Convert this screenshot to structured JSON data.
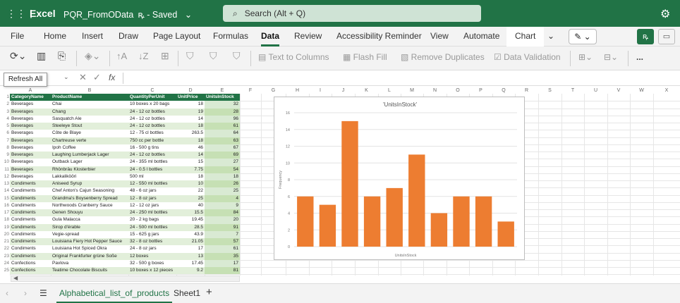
{
  "titlebar": {
    "app_name": "Excel",
    "doc_name": "PQR_FromOData",
    "save_status": "Saved",
    "search_placeholder": "Search (Alt + Q)"
  },
  "menu": {
    "tabs": [
      "File",
      "Home",
      "Insert",
      "Draw",
      "Page Layout",
      "Formulas",
      "Data",
      "Review",
      "Accessibility Reminder",
      "View",
      "Automate",
      "Chart"
    ],
    "active_tab": "Data"
  },
  "ribbon": {
    "text_to_columns": "Text to Columns",
    "flash_fill": "Flash Fill",
    "remove_duplicates": "Remove Duplicates",
    "data_validation": "Data Validation",
    "more": "..."
  },
  "tooltip": "Refresh All",
  "formula_bar": {
    "fx": "fx",
    "value": ""
  },
  "columns": [
    "A",
    "B",
    "C",
    "D",
    "E",
    "F",
    "G",
    "H",
    "I",
    "J",
    "K",
    "L",
    "M",
    "N",
    "O",
    "P",
    "Q",
    "R",
    "S",
    "T",
    "U",
    "V",
    "W",
    "X"
  ],
  "table": {
    "headers": [
      "CategoryName",
      "ProductName",
      "QuantityPerUnit",
      "UnitPrice",
      "UnitsInStock"
    ],
    "rows": [
      [
        "Beverages",
        "Chai",
        "10 boxes x 20 bags",
        "18",
        "32"
      ],
      [
        "Beverages",
        "Chang",
        "24 - 12 oz bottles",
        "19",
        "28"
      ],
      [
        "Beverages",
        "Sasquatch Ale",
        "24 - 12 oz bottles",
        "14",
        "96"
      ],
      [
        "Beverages",
        "Steeleye Stout",
        "24 - 12 oz bottles",
        "18",
        "61"
      ],
      [
        "Beverages",
        "Côte de Blaye",
        "12 - 75 cl bottles",
        "263.5",
        "64"
      ],
      [
        "Beverages",
        "Chartreuse verte",
        "750 cc per bottle",
        "18",
        "63"
      ],
      [
        "Beverages",
        "Ipoh Coffee",
        "16 - 500 g tins",
        "46",
        "67"
      ],
      [
        "Beverages",
        "Laughing Lumberjack Lager",
        "24 - 12 oz bottles",
        "14",
        "69"
      ],
      [
        "Beverages",
        "Outback Lager",
        "24 - 355 ml bottles",
        "15",
        "27"
      ],
      [
        "Beverages",
        "Rhönbräu Klosterbier",
        "24 - 0.5 l bottles",
        "7.75",
        "54"
      ],
      [
        "Beverages",
        "Lakkalikööri",
        "500 ml",
        "18",
        "18"
      ],
      [
        "Condiments",
        "Aniseed Syrup",
        "12 - 550 ml bottles",
        "10",
        "26"
      ],
      [
        "Condiments",
        "Chef Anton's Cajun Seasoning",
        "48 - 6 oz jars",
        "22",
        "25"
      ],
      [
        "Condiments",
        "Grandma's Boysenberry Spread",
        "12 - 8 oz jars",
        "25",
        "4"
      ],
      [
        "Condiments",
        "Northwoods Cranberry Sauce",
        "12 - 12 oz jars",
        "40",
        "9"
      ],
      [
        "Condiments",
        "Genen Shouyu",
        "24 - 250 ml bottles",
        "15.5",
        "84"
      ],
      [
        "Condiments",
        "Gula Malacca",
        "20 - 2 kg bags",
        "19.45",
        "20"
      ],
      [
        "Condiments",
        "Sirop d'érable",
        "24 - 500 ml bottles",
        "28.5",
        "91"
      ],
      [
        "Condiments",
        "Vegie-spread",
        "15 - 625 g jars",
        "43.9",
        "7"
      ],
      [
        "Condiments",
        "Louisiana Fiery Hot Pepper Sauce",
        "32 - 8 oz bottles",
        "21.05",
        "57"
      ],
      [
        "Condiments",
        "Louisiana Hot Spiced Okra",
        "24 - 8 oz jars",
        "17",
        "61"
      ],
      [
        "Condiments",
        "Original Frankfurter grüne Soße",
        "12 boxes",
        "13",
        "35"
      ],
      [
        "Confections",
        "Pavlova",
        "32 - 500 g boxes",
        "17.45",
        "17"
      ],
      [
        "Confections",
        "Teatime Chocolate Biscuits",
        "10 boxes x 12 pieces",
        "9.2",
        "81"
      ]
    ]
  },
  "chart_data": {
    "type": "bar",
    "title": "'UnitsInStock'",
    "xlabel": "UnitsInStock",
    "ylabel": "Frequency",
    "ylim": [
      0,
      16
    ],
    "yticks": [
      "0",
      "2",
      "4",
      "6",
      "8",
      "10",
      "12",
      "14",
      "16"
    ],
    "values": [
      6,
      5,
      15,
      6,
      7,
      11,
      4,
      6,
      6,
      3
    ],
    "color": "#ED7D31",
    "grid": true
  },
  "sheets": {
    "tabs": [
      "Alphabetical_list_of_products",
      "Sheet1"
    ],
    "active": "Alphabetical_list_of_products",
    "add": "+"
  }
}
